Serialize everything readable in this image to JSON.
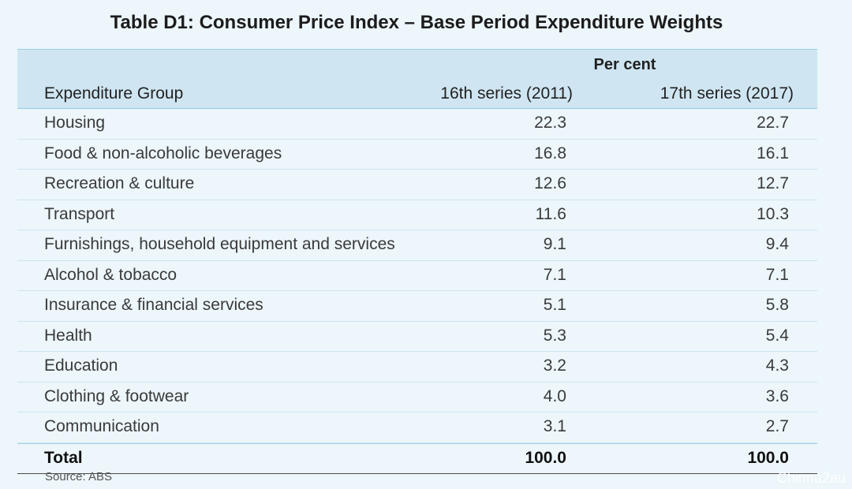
{
  "title": "Table D1: Consumer Price Index – Base Period Expenditure Weights",
  "source": "Source: ABS",
  "watermark": "Chinna2au",
  "chart_data": {
    "type": "table",
    "title": "Table D1: Consumer Price Index – Base Period Expenditure Weights",
    "unit_label": "Per cent",
    "columns": [
      "Expenditure Group",
      "16th series (2011)",
      "17th series (2017)"
    ],
    "rows": [
      {
        "group": "Housing",
        "s16": "22.3",
        "s17": "22.7"
      },
      {
        "group": "Food & non-alcoholic beverages",
        "s16": "16.8",
        "s17": "16.1"
      },
      {
        "group": "Recreation & culture",
        "s16": "12.6",
        "s17": "12.7"
      },
      {
        "group": "Transport",
        "s16": "11.6",
        "s17": "10.3"
      },
      {
        "group": "Furnishings, household equipment and services",
        "s16": "9.1",
        "s17": "9.4"
      },
      {
        "group": "Alcohol & tobacco",
        "s16": "7.1",
        "s17": "7.1"
      },
      {
        "group": "Insurance & financial services",
        "s16": "5.1",
        "s17": "5.8"
      },
      {
        "group": "Health",
        "s16": "5.3",
        "s17": "5.4"
      },
      {
        "group": "Education",
        "s16": "3.2",
        "s17": "4.3"
      },
      {
        "group": "Clothing & footwear",
        "s16": "4.0",
        "s17": "3.6"
      },
      {
        "group": "Communication",
        "s16": "3.1",
        "s17": "2.7"
      }
    ],
    "total": {
      "group": "Total",
      "s16": "100.0",
      "s17": "100.0"
    }
  }
}
